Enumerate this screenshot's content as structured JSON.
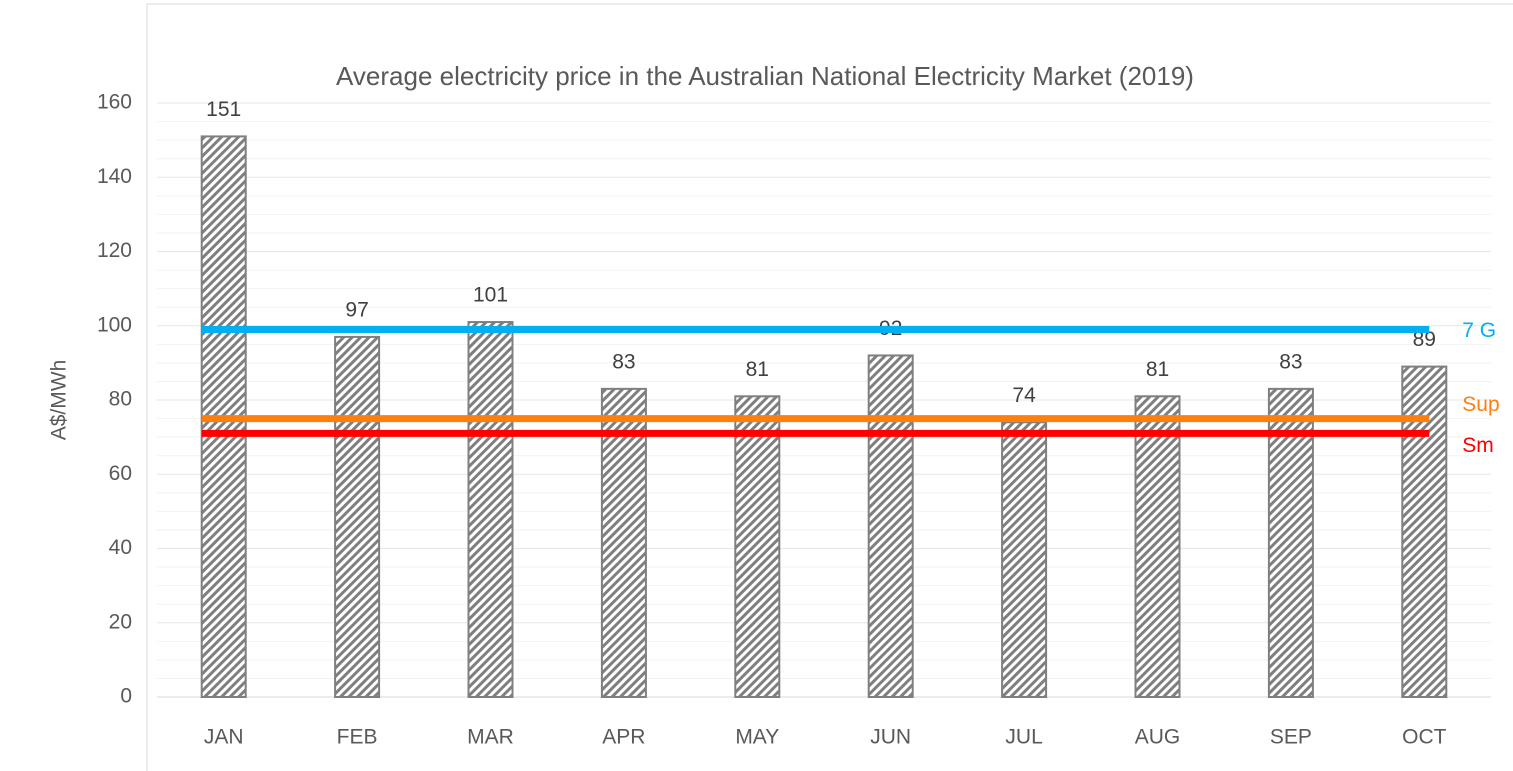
{
  "chart_data": {
    "type": "bar",
    "title": "Average electricity price in the Australian National Electricity Market (2019)",
    "y_label": "A$/MWh",
    "categories": [
      "JAN",
      "FEB",
      "MAR",
      "APR",
      "MAY",
      "JUN",
      "JUL",
      "AUG",
      "SEP",
      "OCT"
    ],
    "values": [
      151,
      97,
      101,
      83,
      81,
      92,
      74,
      81,
      83,
      89
    ],
    "color": "#7f7f7f",
    "ylim": [
      0,
      160
    ],
    "yticks": [
      0,
      20,
      40,
      60,
      80,
      100,
      120,
      140,
      160
    ],
    "grid": true,
    "reference_lines": [
      {
        "name": "7 G",
        "color": "#00b0f0",
        "value": 99
      },
      {
        "name": "Sup",
        "color": "#ff7f0e",
        "value": 75
      },
      {
        "name": "Sm",
        "color": "#ff0000",
        "value": 71
      }
    ]
  }
}
